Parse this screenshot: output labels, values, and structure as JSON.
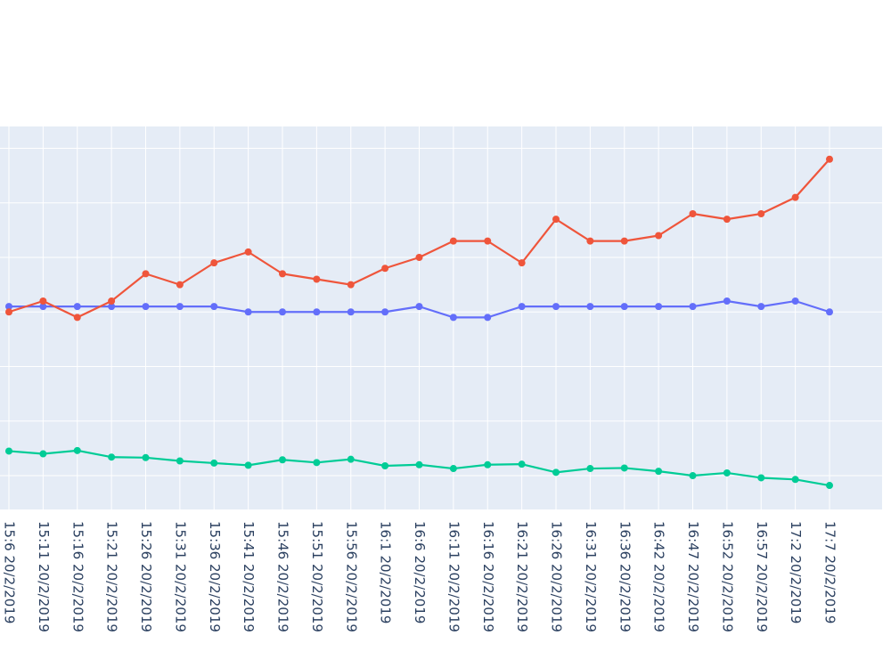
{
  "chart_data": {
    "type": "line",
    "x": [
      "15:6 20/2/2019",
      "15:11 20/2/2019",
      "15:16 20/2/2019",
      "15:21 20/2/2019",
      "15:26 20/2/2019",
      "15:31 20/2/2019",
      "15:36 20/2/2019",
      "15:41 20/2/2019",
      "15:46 20/2/2019",
      "15:51 20/2/2019",
      "15:56 20/2/2019",
      "16:1 20/2/2019",
      "16:6 20/2/2019",
      "16:11 20/2/2019",
      "16:16 20/2/2019",
      "16:21 20/2/2019",
      "16:26 20/2/2019",
      "16:31 20/2/2019",
      "16:36 20/2/2019",
      "16:42 20/2/2019",
      "16:47 20/2/2019",
      "16:52 20/2/2019",
      "16:57 20/2/2019",
      "17:2 20/2/2019",
      "17:7 20/2/2019"
    ],
    "series": [
      {
        "color": "#636efa",
        "values": [
          3.1,
          3.1,
          3.1,
          3.1,
          3.1,
          3.1,
          3.1,
          3.0,
          3.0,
          3.0,
          3.0,
          3.0,
          3.1,
          2.9,
          2.9,
          3.1,
          3.1,
          3.1,
          3.1,
          3.1,
          3.1,
          3.2,
          3.1,
          3.2,
          3.0
        ]
      },
      {
        "color": "#ef553b",
        "values": [
          3.0,
          3.2,
          2.9,
          3.2,
          3.7,
          3.5,
          3.9,
          4.1,
          3.7,
          3.6,
          3.5,
          3.8,
          4.0,
          4.3,
          4.3,
          3.9,
          4.7,
          4.3,
          4.3,
          4.4,
          4.8,
          4.7,
          4.8,
          5.1,
          5.8
        ]
      },
      {
        "color": "#00cc96",
        "values": [
          0.45,
          0.4,
          0.46,
          0.34,
          0.33,
          0.27,
          0.23,
          0.19,
          0.29,
          0.24,
          0.3,
          0.18,
          0.2,
          0.13,
          0.2,
          0.21,
          0.06,
          0.13,
          0.14,
          0.08,
          0.0,
          0.05,
          -0.04,
          -0.07,
          -0.18
        ]
      }
    ],
    "ylim": [
      -0.62,
      6.4
    ],
    "grid": true
  }
}
